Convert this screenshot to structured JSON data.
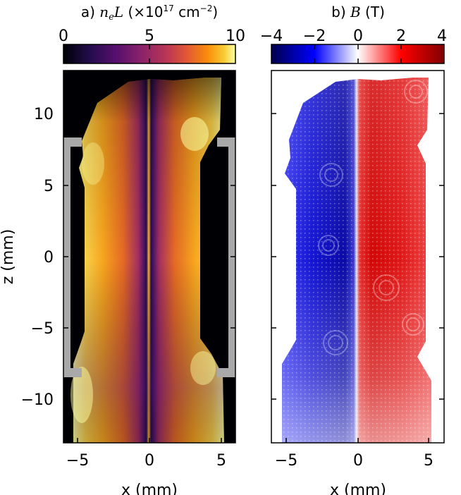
{
  "chart_data": [
    {
      "type": "heatmap",
      "panel": "a)",
      "title_prefix": "a)",
      "title_symbol": "n",
      "title_symbol_sub": "e",
      "title_symbol_tail": "L",
      "title_units_open": "(×10",
      "title_units_exp": "17",
      "title_units_mid": " cm",
      "title_units_exp2": "−2",
      "title_units_close": ")",
      "colormap": "inferno",
      "colorbar_range": [
        0,
        10
      ],
      "colorbar_ticks": [
        "0",
        "5",
        "10"
      ],
      "xlabel": "x (mm)",
      "ylabel": "z (mm)",
      "xlim": [
        -6,
        6
      ],
      "ylim": [
        -13,
        13
      ],
      "xticks": [
        "−5",
        "0",
        "5"
      ],
      "yticks": [
        "10",
        "5",
        "0",
        "−5",
        "−10"
      ],
      "electrode_markers": {
        "x": [
          -5.6,
          5.6
        ],
        "z_range": [
          -8.5,
          8
        ]
      },
      "description_values": {
        "center_column_x": 0,
        "peak_value": 10,
        "background_value": 0
      }
    },
    {
      "type": "heatmap",
      "panel": "b)",
      "title_prefix": "b)",
      "title_symbol": "B",
      "title_units": "(T)",
      "colormap": "seismic",
      "colorbar_range": [
        -4,
        4
      ],
      "colorbar_ticks": [
        "−4",
        "−2",
        "0",
        "2",
        "4"
      ],
      "xlabel": "x (mm)",
      "xlim": [
        -6,
        6
      ],
      "ylim": [
        -13,
        13
      ],
      "xticks": [
        "−5",
        "0",
        "5"
      ],
      "yticks": [
        "10",
        "5",
        "0",
        "−5",
        "−10"
      ],
      "description_values": {
        "left_half_sign": "negative",
        "right_half_sign": "positive",
        "max_abs_field": 4
      }
    }
  ]
}
